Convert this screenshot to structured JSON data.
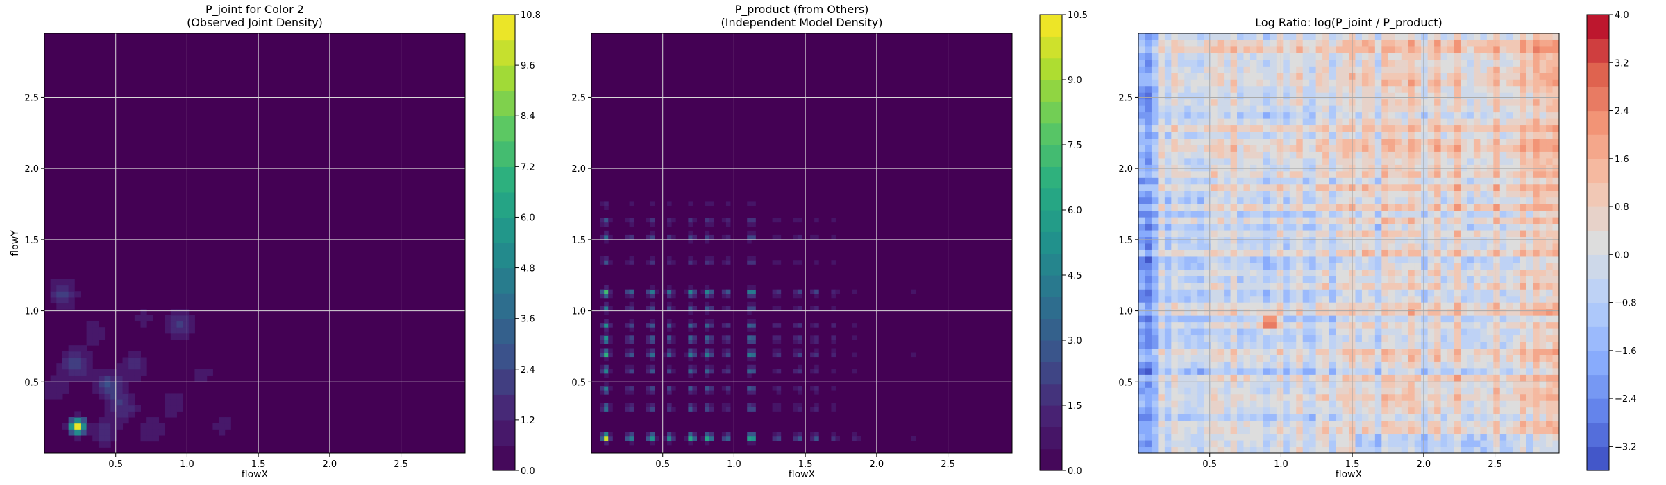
{
  "chart_data": [
    {
      "type": "heatmap",
      "title_line1": "P_joint for Color 2",
      "title_line2": "(Observed Joint Density)",
      "xlabel": "flowX",
      "ylabel": "flowY",
      "xlim": [
        0,
        2.95
      ],
      "ylim": [
        0,
        2.95
      ],
      "x_ticks": [
        "0.5",
        "1.0",
        "1.5",
        "2.0",
        "2.5"
      ],
      "y_ticks": [
        "0.5",
        "1.0",
        "1.5",
        "2.0",
        "2.5"
      ],
      "colormap": "viridis",
      "colorbar_range": [
        0,
        10.8
      ],
      "colorbar_ticks": [
        "0.0",
        "1.2",
        "2.4",
        "3.6",
        "4.8",
        "6.0",
        "7.2",
        "8.4",
        "9.6",
        "10.8"
      ],
      "colorbar_levels": 18,
      "grid": true,
      "hotspots": [
        {
          "x": 0.23,
          "y": 0.19,
          "value": 10.8
        },
        {
          "x": 0.13,
          "y": 1.12,
          "value": 2.0
        },
        {
          "x": 0.22,
          "y": 0.63,
          "value": 2.3
        },
        {
          "x": 0.45,
          "y": 0.48,
          "value": 2.4
        },
        {
          "x": 0.95,
          "y": 0.91,
          "value": 2.0
        },
        {
          "x": 0.55,
          "y": 0.33,
          "value": 1.8
        },
        {
          "x": 0.63,
          "y": 0.62,
          "value": 1.5
        },
        {
          "x": 0.42,
          "y": 0.15,
          "value": 1.6
        },
        {
          "x": 0.75,
          "y": 0.15,
          "value": 1.2
        },
        {
          "x": 0.9,
          "y": 0.35,
          "value": 1.1
        },
        {
          "x": 1.1,
          "y": 0.55,
          "value": 0.9
        },
        {
          "x": 0.35,
          "y": 0.85,
          "value": 1.0
        },
        {
          "x": 0.08,
          "y": 0.45,
          "value": 1.2
        },
        {
          "x": 1.25,
          "y": 0.2,
          "value": 0.8
        },
        {
          "x": 0.7,
          "y": 0.95,
          "value": 0.8
        },
        {
          "x": 1.5,
          "y": 0.4,
          "value": 0.6
        }
      ]
    },
    {
      "type": "heatmap",
      "title_line1": "P_product (from Others)",
      "title_line2": "(Independent Model Density)",
      "xlabel": "flowX",
      "ylabel": "",
      "xlim": [
        0,
        2.95
      ],
      "ylim": [
        0,
        2.95
      ],
      "x_ticks": [
        "0.5",
        "1.0",
        "1.5",
        "2.0",
        "2.5"
      ],
      "y_ticks": [
        "0.5",
        "1.0",
        "1.5",
        "2.0",
        "2.5"
      ],
      "colormap": "viridis",
      "colorbar_range": [
        0,
        10.5
      ],
      "colorbar_ticks": [
        "0.0",
        "1.5",
        "3.0",
        "4.5",
        "6.0",
        "7.5",
        "9.0",
        "10.5"
      ],
      "colorbar_levels": 21,
      "grid": true,
      "x_peaks": [
        {
          "x": 0.1,
          "w": 1.0
        },
        {
          "x": 0.27,
          "w": 0.5
        },
        {
          "x": 0.42,
          "w": 0.6
        },
        {
          "x": 0.55,
          "w": 0.5
        },
        {
          "x": 0.7,
          "w": 0.7
        },
        {
          "x": 0.82,
          "w": 0.7
        },
        {
          "x": 0.95,
          "w": 0.4
        },
        {
          "x": 1.12,
          "w": 0.8
        },
        {
          "x": 1.3,
          "w": 0.3
        },
        {
          "x": 1.45,
          "w": 0.35
        },
        {
          "x": 1.57,
          "w": 0.3
        },
        {
          "x": 1.7,
          "w": 0.2
        },
        {
          "x": 1.85,
          "w": 0.12
        },
        {
          "x": 2.25,
          "w": 0.08
        }
      ],
      "y_peaks": [
        {
          "y": 0.11,
          "w": 1.0
        },
        {
          "y": 0.32,
          "w": 0.45
        },
        {
          "y": 0.45,
          "w": 0.45
        },
        {
          "y": 0.58,
          "w": 0.5
        },
        {
          "y": 0.7,
          "w": 0.7
        },
        {
          "y": 0.8,
          "w": 0.6
        },
        {
          "y": 0.9,
          "w": 0.5
        },
        {
          "y": 1.02,
          "w": 0.4
        },
        {
          "y": 1.13,
          "w": 0.75
        },
        {
          "y": 1.35,
          "w": 0.3
        },
        {
          "y": 1.52,
          "w": 0.35
        },
        {
          "y": 1.63,
          "w": 0.3
        },
        {
          "y": 1.75,
          "w": 0.15
        },
        {
          "y": 2.35,
          "w": 0.05
        }
      ]
    },
    {
      "type": "heatmap",
      "title_line1": "Log Ratio: log(P_joint / P_product)",
      "title_line2": "",
      "xlabel": "flowX",
      "ylabel": "",
      "xlim": [
        0,
        2.95
      ],
      "ylim": [
        0,
        2.95
      ],
      "x_ticks": [
        "0.5",
        "1.0",
        "1.5",
        "2.0",
        "2.5"
      ],
      "y_ticks": [
        "0.5",
        "1.0",
        "1.5",
        "2.0",
        "2.5"
      ],
      "colormap": "coolwarm",
      "colorbar_range": [
        -3.6,
        4.0
      ],
      "colorbar_ticks": [
        "4.0",
        "3.2",
        "2.4",
        "1.6",
        "0.8",
        "0.0",
        "−0.8",
        "−1.6",
        "−2.4",
        "−3.2"
      ],
      "colorbar_tick_values": [
        4.0,
        3.2,
        2.4,
        1.6,
        0.8,
        0.0,
        -0.8,
        -1.6,
        -2.4,
        -3.2
      ],
      "colorbar_levels": 19,
      "grid": true,
      "notable_points": [
        {
          "x": 0.92,
          "y": 0.92,
          "value": 4.0
        },
        {
          "x": 0.05,
          "y": 2.5,
          "value": -3.0
        },
        {
          "x": 2.8,
          "y": 2.85,
          "value": 2.4
        }
      ]
    }
  ]
}
